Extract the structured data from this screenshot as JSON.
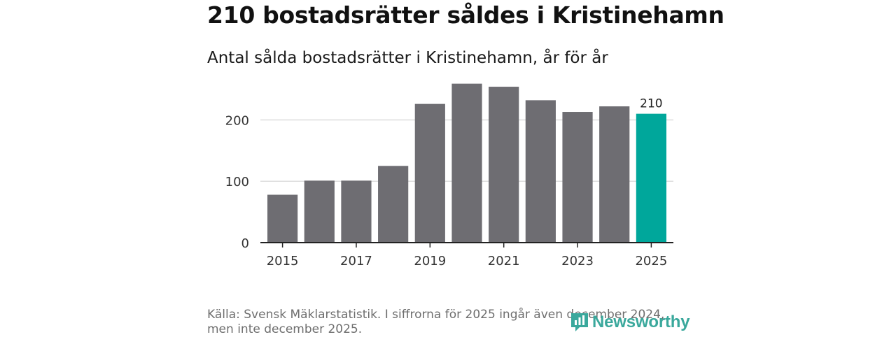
{
  "header": {
    "title": "210 bostadsrätter såldes i Kristinehamn",
    "subtitle": "Antal sålda bostadsrätter i Kristinehamn, år för år"
  },
  "footer": {
    "source": "Källa: Svensk Mäklarstatistik. I siffrorna för 2025 ingår även december 2024, men inte december 2025.",
    "logo_text": "Newsworthy"
  },
  "colors": {
    "bar": "#6e6d72",
    "highlight": "#00a79b",
    "grid": "#dddddd",
    "axis": "#222222",
    "logo": "#3aa89c"
  },
  "chart_data": {
    "type": "bar",
    "title": "210 bostadsrätter såldes i Kristinehamn",
    "subtitle": "Antal sålda bostadsrätter i Kristinehamn, år för år",
    "xlabel": "",
    "ylabel": "",
    "categories": [
      "2015",
      "2016",
      "2017",
      "2018",
      "2019",
      "2020",
      "2021",
      "2022",
      "2023",
      "2024",
      "2025"
    ],
    "values": [
      78,
      101,
      101,
      125,
      226,
      259,
      254,
      232,
      213,
      222,
      210
    ],
    "highlight_index": 10,
    "data_labels": [
      {
        "index": 10,
        "text": "210"
      }
    ],
    "x_tick_labels": [
      "2015",
      "2017",
      "2019",
      "2021",
      "2023",
      "2025"
    ],
    "y_ticks": [
      0,
      100,
      200
    ],
    "y_tick_labels": [
      "0",
      "100",
      "200"
    ],
    "ylim": [
      0,
      270
    ],
    "grid": true
  }
}
